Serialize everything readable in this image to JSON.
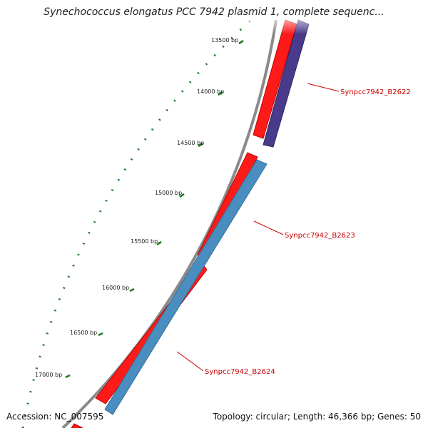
{
  "title": "Synechococcus elongatus PCC 7942 plasmid 1, complete sequenc...",
  "footer": {
    "accession": "Accession: NC_007595",
    "summary": "Topology: circular; Length: 46,366 bp; Genes: 50"
  },
  "map": {
    "tick_labels": [
      "13500 bp",
      "14000 bp",
      "14500 bp",
      "15000 bp",
      "15500 bp",
      "16000 bp",
      "16500 bp",
      "17000 bp"
    ],
    "gene_labels": [
      "Synpcc7942_B2622",
      "Synpcc7942_B2623",
      "Synpcc7942_B2624"
    ]
  },
  "colors": {
    "forward_cds": "#ff1a1a",
    "reverse_cds_B2622": "#4a3a8c",
    "reverse_cds_B2623_B2624": "#4a8ec0",
    "backbone": "#8a8a8a",
    "ticks": "#1f7a1f",
    "labels": "#cc0000"
  }
}
